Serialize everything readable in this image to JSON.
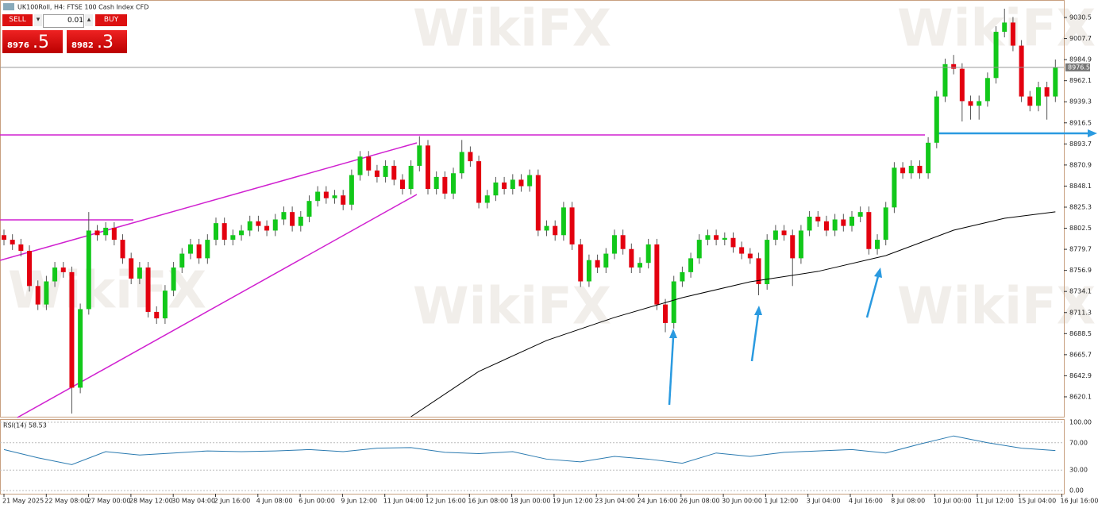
{
  "header": {
    "title": "UK100Roll, H4: FTSE 100 Cash Index CFD"
  },
  "trade_panel": {
    "sell": "SELL",
    "buy": "BUY",
    "lot": "0.01",
    "bid_main": "8976",
    "bid_frac": ".5",
    "ask_main": "8982",
    "ask_frac": ".3"
  },
  "watermark": "WikiFX",
  "chart_data": {
    "type": "candlestick",
    "x_labels": [
      "21 May 2025",
      "22 May 08:00",
      "27 May 00:00",
      "28 May 12:00",
      "30 May 04:00",
      "2 Jun 16:00",
      "4 Jun 08:00",
      "6 Jun 00:00",
      "9 Jun 12:00",
      "11 Jun 04:00",
      "12 Jun 16:00",
      "16 Jun 08:00",
      "18 Jun 00:00",
      "19 Jun 12:00",
      "23 Jun 04:00",
      "24 Jun 16:00",
      "26 Jun 08:00",
      "30 Jun 00:00",
      "1 Jul 12:00",
      "3 Jul 04:00",
      "4 Jul 16:00",
      "8 Jul 08:00",
      "10 Jul 00:00",
      "11 Jul 12:00",
      "15 Jul 04:00",
      "16 Jul 16:00"
    ],
    "open": [
      8795,
      8790,
      8785,
      8778,
      8740,
      8720,
      8745,
      8760,
      8755,
      8630,
      8715,
      8800,
      8795,
      8803,
      8790,
      8770,
      8748,
      8760,
      8712,
      8705,
      8735,
      8760,
      8775,
      8785,
      8770,
      8790,
      8808,
      8790,
      8795,
      8800,
      8810,
      8805,
      8800,
      8812,
      8820,
      8805,
      8815,
      8832,
      8842,
      8835,
      8838,
      8828,
      8860,
      8880,
      8865,
      8858,
      8870,
      8855,
      8845,
      8870,
      8892,
      8845,
      8858,
      8840,
      8862,
      8885,
      8875,
      8830,
      8838,
      8852,
      8845,
      8855,
      8848,
      8860,
      8800,
      8805,
      8795,
      8825,
      8785,
      8745,
      8768,
      8760,
      8775,
      8795,
      8780,
      8760,
      8765,
      8785,
      8720,
      8700,
      8745,
      8755,
      8770,
      8790,
      8795,
      8790,
      8792,
      8782,
      8775,
      8770,
      8742,
      8790,
      8800,
      8795,
      8770,
      8800,
      8815,
      8810,
      8800,
      8812,
      8805,
      8815,
      8820,
      8780,
      8790,
      8825,
      8868,
      8862,
      8870,
      8862,
      8895,
      8945,
      8980,
      8975,
      8940,
      8935,
      8940,
      8965,
      9015,
      9025,
      9000,
      8945,
      8935,
      8955,
      8945
    ],
    "high": [
      8801,
      8796,
      8791,
      8784,
      8746,
      8751,
      8766,
      8766,
      8761,
      8721,
      8820,
      8806,
      8809,
      8809,
      8796,
      8776,
      8766,
      8766,
      8718,
      8741,
      8766,
      8781,
      8791,
      8791,
      8796,
      8814,
      8814,
      8801,
      8806,
      8816,
      8816,
      8811,
      8818,
      8826,
      8826,
      8821,
      8838,
      8848,
      8848,
      8844,
      8844,
      8866,
      8886,
      8886,
      8871,
      8876,
      8876,
      8861,
      8876,
      8902,
      8898,
      8864,
      8864,
      8868,
      8898,
      8891,
      8881,
      8844,
      8858,
      8858,
      8861,
      8861,
      8866,
      8866,
      8811,
      8811,
      8831,
      8831,
      8791,
      8774,
      8774,
      8781,
      8801,
      8801,
      8786,
      8771,
      8791,
      8791,
      8726,
      8751,
      8761,
      8776,
      8796,
      8801,
      8801,
      8798,
      8798,
      8788,
      8781,
      8776,
      8796,
      8806,
      8806,
      8801,
      8806,
      8821,
      8821,
      8816,
      8818,
      8818,
      8821,
      8826,
      8826,
      8796,
      8831,
      8874,
      8874,
      8876,
      8876,
      8901,
      8951,
      8986,
      8990,
      8981,
      8946,
      8946,
      8971,
      9021,
      9040,
      9031,
      9006,
      8951,
      8961,
      8961,
      8985
    ],
    "low": [
      8784,
      8779,
      8772,
      8734,
      8714,
      8714,
      8739,
      8749,
      8602,
      8624,
      8709,
      8789,
      8789,
      8784,
      8764,
      8742,
      8742,
      8706,
      8699,
      8699,
      8729,
      8754,
      8769,
      8764,
      8764,
      8784,
      8784,
      8784,
      8789,
      8794,
      8799,
      8794,
      8794,
      8806,
      8799,
      8799,
      8809,
      8826,
      8829,
      8829,
      8822,
      8822,
      8854,
      8859,
      8852,
      8852,
      8849,
      8839,
      8839,
      8864,
      8839,
      8839,
      8834,
      8834,
      8856,
      8869,
      8824,
      8824,
      8832,
      8839,
      8839,
      8842,
      8842,
      8794,
      8794,
      8789,
      8789,
      8779,
      8739,
      8739,
      8754,
      8754,
      8769,
      8774,
      8754,
      8754,
      8759,
      8714,
      8690,
      8694,
      8739,
      8749,
      8764,
      8784,
      8784,
      8784,
      8776,
      8769,
      8764,
      8730,
      8736,
      8784,
      8789,
      8740,
      8764,
      8794,
      8804,
      8794,
      8794,
      8799,
      8799,
      8809,
      8774,
      8774,
      8784,
      8819,
      8856,
      8856,
      8856,
      8856,
      8889,
      8939,
      8969,
      8918,
      8920,
      8920,
      8934,
      8959,
      9009,
      8994,
      8939,
      8929,
      8929,
      8920,
      8939
    ],
    "close": [
      8790,
      8785,
      8778,
      8740,
      8720,
      8745,
      8760,
      8755,
      8630,
      8715,
      8800,
      8795,
      8803,
      8790,
      8770,
      8748,
      8760,
      8712,
      8705,
      8735,
      8760,
      8775,
      8785,
      8770,
      8790,
      8808,
      8790,
      8795,
      8800,
      8810,
      8805,
      8800,
      8812,
      8820,
      8805,
      8815,
      8832,
      8842,
      8835,
      8838,
      8828,
      8860,
      8880,
      8865,
      8858,
      8870,
      8855,
      8845,
      8870,
      8892,
      8845,
      8858,
      8840,
      8862,
      8885,
      8875,
      8830,
      8838,
      8852,
      8845,
      8855,
      8848,
      8860,
      8800,
      8805,
      8795,
      8825,
      8785,
      8745,
      8768,
      8760,
      8775,
      8795,
      8780,
      8760,
      8765,
      8785,
      8720,
      8700,
      8745,
      8755,
      8770,
      8790,
      8795,
      8790,
      8792,
      8782,
      8775,
      8770,
      8742,
      8790,
      8800,
      8795,
      8770,
      8800,
      8815,
      8810,
      8800,
      8812,
      8805,
      8815,
      8820,
      8780,
      8790,
      8825,
      8868,
      8862,
      8870,
      8862,
      8895,
      8945,
      8980,
      8975,
      8940,
      8935,
      8940,
      8965,
      9015,
      9025,
      9000,
      8945,
      8935,
      8955,
      8945,
      8976.5
    ],
    "up_color": "#12c81a",
    "down_color": "#e3000f",
    "ylim": [
      8598.6,
      9049.4
    ],
    "yticks": [
      9030.5,
      9007.7,
      8984.9,
      8962.1,
      8939.3,
      8916.5,
      8893.7,
      8870.9,
      8848.1,
      8825.3,
      8802.5,
      8779.7,
      8756.9,
      8734.1,
      8711.3,
      8688.5,
      8665.7,
      8642.9,
      8620.1
    ],
    "current_price": 8976.5,
    "ma": {
      "color": "#000000",
      "x": [
        48,
        56,
        64,
        72,
        80,
        88,
        96,
        104,
        112,
        118,
        124
      ],
      "values": [
        8598.6,
        8647.6,
        8681.1,
        8706.0,
        8727.4,
        8744.6,
        8755.8,
        8772.9,
        8800.4,
        8813.3,
        8820.2
      ]
    },
    "rsi": {
      "label": "RSI(14) 58.53",
      "color": "#2a7ab0",
      "x": [
        0,
        4,
        8,
        12,
        16,
        20,
        24,
        28,
        32,
        36,
        40,
        44,
        48,
        52,
        56,
        60,
        64,
        68,
        72,
        76,
        80,
        84,
        88,
        92,
        96,
        100,
        104,
        108,
        112,
        116,
        120,
        124
      ],
      "values": [
        60,
        48,
        38,
        57,
        52,
        55,
        58,
        57,
        58,
        60,
        57,
        62,
        63,
        56,
        54,
        57,
        46,
        42,
        50,
        46,
        40,
        55,
        50,
        56,
        58,
        60,
        55,
        68,
        80,
        70,
        62,
        58.53
      ],
      "ylim": [
        0,
        100
      ],
      "yticks": [
        {
          "value": 100,
          "label": "100.00"
        },
        {
          "value": 70,
          "label": "70.00"
        },
        {
          "value": 30,
          "label": "30.00"
        },
        {
          "value": 0,
          "label": "0.00"
        }
      ]
    }
  }
}
